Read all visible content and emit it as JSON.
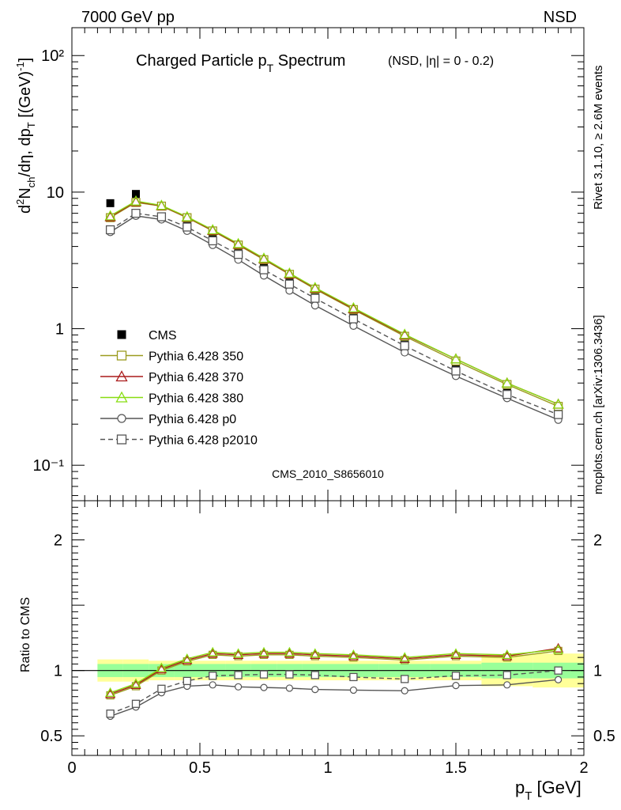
{
  "header": {
    "left": "7000 GeV pp",
    "right": "NSD"
  },
  "side_text": {
    "rivet": "Rivet 3.1.10, ≥ 2.6M events",
    "site": "mcplots.cern.ch [arXiv:1306.3436]"
  },
  "watermark": "CMS_2010_S8656010",
  "chart_data": [
    {
      "type": "line",
      "panel": "main",
      "title": "Charged Particle p_T Spectrum",
      "title_main": "Charged Particle p",
      "title_sub": "T",
      "title_main2": " Spectrum",
      "title_extra": "(NSD, |η| =   0 - 0.2)",
      "ylabel": "d²N_ch/dη, dp_T [(GeV)⁻¹]",
      "xlabel": "p_T [GeV]",
      "xlabel_main": "p",
      "xlabel_sub": "T",
      "xlabel_unit": " [GeV]",
      "y_scale": "log",
      "ylim": [
        0.055,
        160
      ],
      "xlim": [
        0,
        2
      ],
      "y_ticks": [
        0.1,
        1,
        10,
        100
      ],
      "legend_placement": "left",
      "x": [
        0.15,
        0.25,
        0.35,
        0.45,
        0.55,
        0.65,
        0.75,
        0.85,
        0.95,
        1.1,
        1.3,
        1.5,
        1.7,
        1.9
      ],
      "series": [
        {
          "name": "CMS",
          "style": "data",
          "color": "#000000",
          "marker": "filled-square",
          "values": [
            8.3,
            9.7,
            7.9,
            6.1,
            4.65,
            3.7,
            2.85,
            2.2,
            1.75,
            1.25,
            0.8,
            0.52,
            0.35,
            0.235
          ]
        },
        {
          "name": "Pythia 6.428 350",
          "color": "#9b9b1f",
          "marker": "open-square",
          "dash": "",
          "values": [
            6.5,
            8.4,
            7.9,
            6.5,
            5.2,
            4.1,
            3.2,
            2.5,
            1.95,
            1.38,
            0.88,
            0.58,
            0.39,
            0.27
          ]
        },
        {
          "name": "Pythia 6.428 370",
          "color": "#aa1a1a",
          "marker": "open-triangle",
          "dash": "",
          "values": [
            6.6,
            8.5,
            7.95,
            6.55,
            5.25,
            4.15,
            3.25,
            2.52,
            1.98,
            1.4,
            0.9,
            0.6,
            0.4,
            0.28
          ]
        },
        {
          "name": "Pythia 6.428 380",
          "color": "#88dd11",
          "marker": "open-triangle",
          "dash": "",
          "values": [
            6.7,
            8.6,
            8.0,
            6.6,
            5.3,
            4.2,
            3.28,
            2.55,
            2.0,
            1.42,
            0.91,
            0.6,
            0.4,
            0.28
          ]
        },
        {
          "name": "Pythia 6.428 p0",
          "color": "#555555",
          "marker": "open-circle",
          "dash": "",
          "values": [
            5.1,
            6.7,
            6.3,
            5.2,
            4.1,
            3.2,
            2.45,
            1.9,
            1.48,
            1.05,
            0.67,
            0.45,
            0.31,
            0.215
          ]
        },
        {
          "name": "Pythia 6.428 p2010",
          "color": "#555555",
          "marker": "open-square",
          "dash": "6,4",
          "values": [
            5.3,
            7.0,
            6.6,
            5.55,
            4.4,
            3.5,
            2.7,
            2.12,
            1.67,
            1.18,
            0.75,
            0.49,
            0.33,
            0.235
          ]
        }
      ]
    },
    {
      "type": "line",
      "panel": "ratio",
      "ylabel": "Ratio to CMS",
      "ylim": [
        0.35,
        2.3
      ],
      "y_ticks": [
        0.5,
        1,
        2
      ],
      "reference_line": 1,
      "band_edges": [
        0.1,
        0.2,
        0.3,
        0.4,
        0.5,
        0.6,
        0.7,
        0.8,
        0.9,
        1.0,
        1.2,
        1.4,
        1.6,
        1.8,
        2.0
      ],
      "band_inner": [
        0.05,
        0.05,
        0.05,
        0.05,
        0.05,
        0.05,
        0.05,
        0.05,
        0.05,
        0.05,
        0.05,
        0.05,
        0.06,
        0.06
      ],
      "band_outer": [
        0.085,
        0.085,
        0.075,
        0.075,
        0.075,
        0.075,
        0.075,
        0.075,
        0.075,
        0.075,
        0.075,
        0.075,
        0.12,
        0.13
      ],
      "band_inner_color": "#99ff99",
      "band_outer_color": "#ffff99",
      "x": [
        0.15,
        0.25,
        0.35,
        0.45,
        0.55,
        0.65,
        0.75,
        0.85,
        0.95,
        1.1,
        1.3,
        1.5,
        1.7,
        1.9
      ],
      "series": [
        {
          "name": "Pythia 6.428 350",
          "color": "#9b9b1f",
          "marker": "open-square",
          "dash": "",
          "values": [
            0.81,
            0.88,
            1.0,
            1.07,
            1.12,
            1.11,
            1.12,
            1.12,
            1.11,
            1.1,
            1.08,
            1.11,
            1.1,
            1.15
          ]
        },
        {
          "name": "Pythia 6.428 370",
          "color": "#aa1a1a",
          "marker": "open-triangle",
          "dash": "",
          "values": [
            0.82,
            0.89,
            1.01,
            1.08,
            1.13,
            1.12,
            1.13,
            1.13,
            1.12,
            1.11,
            1.09,
            1.12,
            1.11,
            1.17
          ]
        },
        {
          "name": "Pythia 6.428 380",
          "color": "#88dd11",
          "marker": "open-triangle",
          "dash": "",
          "values": [
            0.83,
            0.9,
            1.02,
            1.09,
            1.14,
            1.13,
            1.14,
            1.14,
            1.13,
            1.12,
            1.1,
            1.13,
            1.12,
            1.16
          ]
        },
        {
          "name": "Pythia 6.428 p0",
          "color": "#555555",
          "marker": "open-circle",
          "dash": "",
          "values": [
            0.65,
            0.72,
            0.83,
            0.88,
            0.89,
            0.875,
            0.87,
            0.865,
            0.855,
            0.85,
            0.845,
            0.885,
            0.89,
            0.93
          ]
        },
        {
          "name": "Pythia 6.428 p2010",
          "color": "#555555",
          "marker": "open-square",
          "dash": "6,4",
          "values": [
            0.67,
            0.745,
            0.86,
            0.92,
            0.96,
            0.965,
            0.97,
            0.97,
            0.965,
            0.95,
            0.935,
            0.96,
            0.965,
            1.0
          ]
        }
      ]
    }
  ],
  "axis_labels": {
    "x_ticks": [
      "0",
      "0.5",
      "1",
      "1.5",
      "2"
    ],
    "main_y_ticks": [
      "10⁻¹",
      "1",
      "10",
      "10²"
    ],
    "ratio_y_ticks": [
      "0.5",
      "1",
      "2"
    ]
  }
}
